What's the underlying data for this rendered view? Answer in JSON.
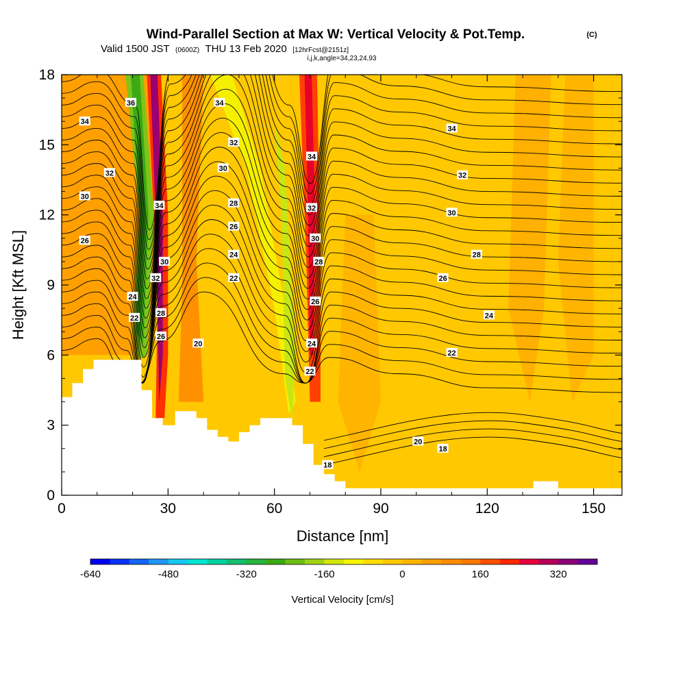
{
  "header": {
    "title": "Wind-Parallel Section at Max W: Vertical Velocity & Pot.Temp.",
    "title_mark": "(C)",
    "valid_prefix": "Valid 1500 JST",
    "valid_zulu": "(0600Z)",
    "valid_day": "THU 13 Feb 2020",
    "forecast": "[12hrFcst@2151z]",
    "indices": "i,j,k,angle=34,23,24,93"
  },
  "chart_data": {
    "type": "heatmap",
    "xlabel": "Distance [nm]",
    "ylabel": "Height [Kft MSL]",
    "xlim": [
      0,
      158
    ],
    "ylim": [
      0,
      18
    ],
    "x_ticks": [
      0,
      30,
      60,
      90,
      120,
      150
    ],
    "y_ticks": [
      0,
      3,
      6,
      9,
      12,
      15,
      18
    ],
    "colorbar": {
      "title": "Vertical Velocity [cm/s]",
      "min": -640,
      "max": 400,
      "step": 40,
      "tick_values": [
        -640,
        -480,
        -320,
        -160,
        0,
        160,
        320
      ],
      "colors": [
        "#0000f0",
        "#0a32f5",
        "#1464f5",
        "#1e96f5",
        "#14c8f0",
        "#00e6d2",
        "#00d2a0",
        "#14be6e",
        "#28b43c",
        "#3caa14",
        "#6ebe14",
        "#a0d214",
        "#d2e60a",
        "#f5f500",
        "#ffdc00",
        "#ffc800",
        "#ffb400",
        "#ffa000",
        "#ff8c00",
        "#ff7800",
        "#ff5000",
        "#ff2800",
        "#e6003c",
        "#b4005a",
        "#8c0078",
        "#640096"
      ]
    },
    "terrain": [
      {
        "x": 0,
        "y": 4.2
      },
      {
        "x": 3,
        "y": 4.2
      },
      {
        "x": 3,
        "y": 4.8
      },
      {
        "x": 6,
        "y": 4.8
      },
      {
        "x": 6,
        "y": 5.4
      },
      {
        "x": 9,
        "y": 5.4
      },
      {
        "x": 9,
        "y": 5.8
      },
      {
        "x": 22.5,
        "y": 5.8
      },
      {
        "x": 22.5,
        "y": 4.5
      },
      {
        "x": 25.5,
        "y": 4.5
      },
      {
        "x": 25.5,
        "y": 3.3
      },
      {
        "x": 28.5,
        "y": 3.3
      },
      {
        "x": 28.5,
        "y": 3.0
      },
      {
        "x": 32,
        "y": 3.0
      },
      {
        "x": 32,
        "y": 3.6
      },
      {
        "x": 38,
        "y": 3.6
      },
      {
        "x": 38,
        "y": 3.3
      },
      {
        "x": 41,
        "y": 3.3
      },
      {
        "x": 41,
        "y": 2.8
      },
      {
        "x": 44,
        "y": 2.8
      },
      {
        "x": 44,
        "y": 2.5
      },
      {
        "x": 47,
        "y": 2.5
      },
      {
        "x": 47,
        "y": 2.3
      },
      {
        "x": 50,
        "y": 2.3
      },
      {
        "x": 50,
        "y": 2.7
      },
      {
        "x": 53,
        "y": 2.7
      },
      {
        "x": 53,
        "y": 3.0
      },
      {
        "x": 56,
        "y": 3.0
      },
      {
        "x": 56,
        "y": 3.3
      },
      {
        "x": 65,
        "y": 3.3
      },
      {
        "x": 65,
        "y": 3.0
      },
      {
        "x": 68,
        "y": 3.0
      },
      {
        "x": 68,
        "y": 2.2
      },
      {
        "x": 71,
        "y": 2.2
      },
      {
        "x": 71,
        "y": 1.3
      },
      {
        "x": 74,
        "y": 1.3
      },
      {
        "x": 74,
        "y": 0.9
      },
      {
        "x": 77,
        "y": 0.9
      },
      {
        "x": 77,
        "y": 0.6
      },
      {
        "x": 80,
        "y": 0.6
      },
      {
        "x": 80,
        "y": 0.3
      },
      {
        "x": 84,
        "y": 0.3
      },
      {
        "x": 84,
        "y": 0
      }
    ],
    "terrain_right": [
      {
        "x": 133,
        "y": 0.3
      },
      {
        "x": 133,
        "y": 0.6
      },
      {
        "x": 140,
        "y": 0.6
      },
      {
        "x": 140,
        "y": 0.3
      }
    ],
    "contour_labels": [
      {
        "text": "36",
        "x": 19.5,
        "y": 16.8
      },
      {
        "text": "34",
        "x": 6.5,
        "y": 16.0
      },
      {
        "text": "32",
        "x": 13.5,
        "y": 13.8
      },
      {
        "text": "30",
        "x": 6.5,
        "y": 12.8
      },
      {
        "text": "26",
        "x": 6.5,
        "y": 10.9
      },
      {
        "text": "34",
        "x": 27.5,
        "y": 12.4
      },
      {
        "text": "30",
        "x": 29.0,
        "y": 10.0
      },
      {
        "text": "32",
        "x": 26.5,
        "y": 9.3
      },
      {
        "text": "24",
        "x": 20.0,
        "y": 8.5
      },
      {
        "text": "22",
        "x": 20.5,
        "y": 7.6
      },
      {
        "text": "28",
        "x": 28.0,
        "y": 7.8
      },
      {
        "text": "26",
        "x": 28.0,
        "y": 6.8
      },
      {
        "text": "20",
        "x": 38.5,
        "y": 6.5
      },
      {
        "text": "34",
        "x": 44.5,
        "y": 16.8
      },
      {
        "text": "32",
        "x": 48.5,
        "y": 15.1
      },
      {
        "text": "30",
        "x": 45.5,
        "y": 14.0
      },
      {
        "text": "28",
        "x": 48.5,
        "y": 12.5
      },
      {
        "text": "26",
        "x": 48.5,
        "y": 11.5
      },
      {
        "text": "24",
        "x": 48.5,
        "y": 10.3
      },
      {
        "text": "22",
        "x": 48.5,
        "y": 9.3
      },
      {
        "text": "34",
        "x": 70.5,
        "y": 14.5
      },
      {
        "text": "32",
        "x": 70.5,
        "y": 12.3
      },
      {
        "text": "30",
        "x": 71.5,
        "y": 11.0
      },
      {
        "text": "28",
        "x": 72.5,
        "y": 10.0
      },
      {
        "text": "26",
        "x": 71.5,
        "y": 8.3
      },
      {
        "text": "24",
        "x": 70.5,
        "y": 6.5
      },
      {
        "text": "22",
        "x": 70.0,
        "y": 5.3
      },
      {
        "text": "18",
        "x": 75.0,
        "y": 1.3
      },
      {
        "text": "34",
        "x": 110.0,
        "y": 15.7
      },
      {
        "text": "32",
        "x": 113.0,
        "y": 13.7
      },
      {
        "text": "30",
        "x": 110.0,
        "y": 12.1
      },
      {
        "text": "28",
        "x": 117.0,
        "y": 10.3
      },
      {
        "text": "26",
        "x": 107.5,
        "y": 9.3
      },
      {
        "text": "24",
        "x": 120.5,
        "y": 7.7
      },
      {
        "text": "22",
        "x": 110.0,
        "y": 6.1
      },
      {
        "text": "20",
        "x": 100.5,
        "y": 2.3
      },
      {
        "text": "18",
        "x": 107.5,
        "y": 2.0
      }
    ],
    "grid": false,
    "legend": "colorbar-bottom"
  }
}
